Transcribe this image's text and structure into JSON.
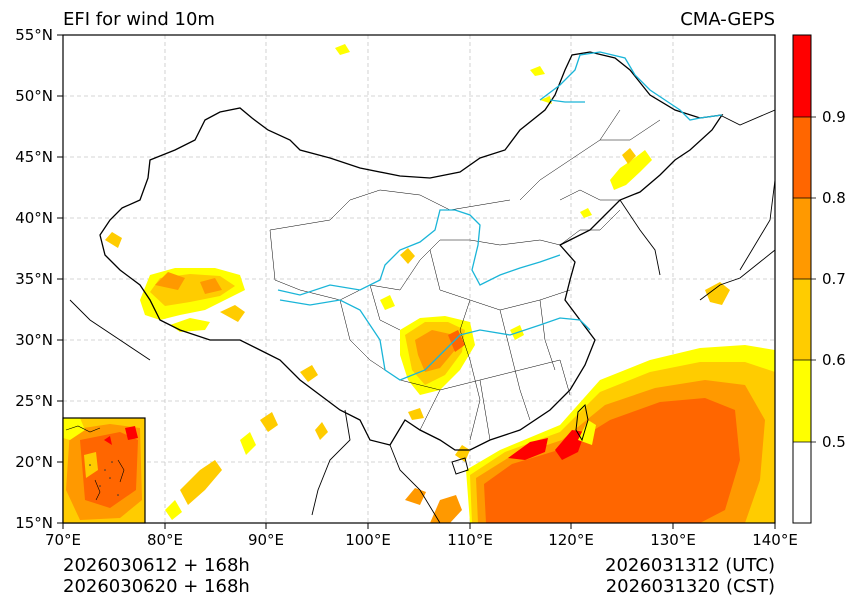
{
  "title_left": "EFI for wind 10m",
  "title_right": "CMA-GEPS",
  "lat_ticks": [
    "55°N",
    "50°N",
    "45°N",
    "40°N",
    "35°N",
    "30°N",
    "25°N",
    "20°N",
    "15°N"
  ],
  "lon_ticks": [
    "70°E",
    "80°E",
    "90°E",
    "100°E",
    "110°E",
    "120°E",
    "130°E",
    "140°E"
  ],
  "footer": {
    "left_line1": "2026030612 + 168h",
    "left_line2": "2026030620 + 168h",
    "right_line1": "2026031312 (UTC)",
    "right_line2": "2026031320 (CST)"
  },
  "colorbar": {
    "labels": [
      "0.9",
      "0.8",
      "0.7",
      "0.6",
      "0.5"
    ],
    "colors": [
      "#ff0000",
      "#ff6600",
      "#ff9900",
      "#ffcc00",
      "#ffff00",
      "#ffffff"
    ]
  },
  "map": {
    "extent_lon": [
      70,
      140
    ],
    "extent_lat": [
      15,
      55
    ],
    "efi_levels": [
      0.5,
      0.6,
      0.7,
      0.8,
      0.9
    ],
    "river_color": "#1ab5d8",
    "border_color": "#000000"
  }
}
